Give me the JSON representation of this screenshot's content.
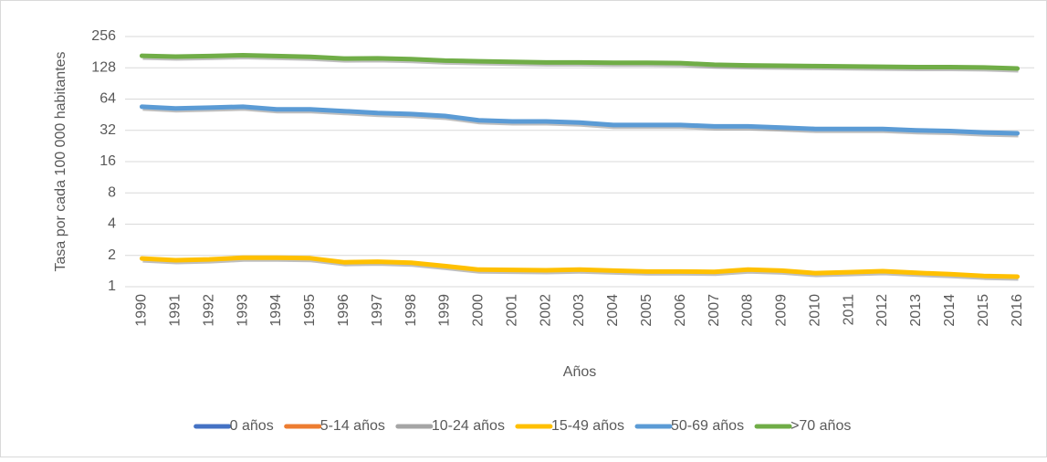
{
  "chart_data": {
    "type": "line",
    "y_label": "Tasa por cada 100 000 habitantes",
    "x_label": "Años",
    "categories": [
      "1990",
      "1991",
      "1992",
      "1993",
      "1994",
      "1995",
      "1996",
      "1997",
      "1998",
      "1999",
      "2000",
      "2001",
      "2002",
      "2003",
      "2004",
      "2005",
      "2006",
      "2007",
      "2008",
      "2009",
      "2010",
      "2011",
      "2012",
      "2013",
      "2014",
      "2015",
      "2016"
    ],
    "yscale": "log",
    "log_base": 2,
    "ylim": [
      1,
      256
    ],
    "yticks": [
      1,
      2,
      4,
      8,
      16,
      32,
      64,
      128,
      256
    ],
    "grid": true,
    "legend": "bottom",
    "series": [
      {
        "name": "0 años",
        "color": "#4472c4",
        "values": [
          null,
          null,
          null,
          null,
          null,
          null,
          null,
          null,
          null,
          null,
          null,
          null,
          null,
          null,
          null,
          null,
          null,
          null,
          null,
          null,
          null,
          null,
          null,
          null,
          null,
          null,
          null
        ]
      },
      {
        "name": "5-14 años",
        "color": "#ed7d31",
        "values": [
          null,
          null,
          null,
          null,
          null,
          null,
          null,
          null,
          null,
          null,
          null,
          null,
          null,
          null,
          null,
          null,
          null,
          null,
          null,
          null,
          null,
          null,
          null,
          null,
          null,
          null,
          null
        ]
      },
      {
        "name": "10-24 años",
        "color": "#a5a5a5",
        "values": [
          null,
          null,
          null,
          null,
          null,
          null,
          null,
          null,
          null,
          null,
          null,
          null,
          null,
          null,
          null,
          null,
          null,
          null,
          null,
          null,
          null,
          null,
          null,
          null,
          null,
          null,
          null
        ]
      },
      {
        "name": "15-49 años",
        "color": "#ffc000",
        "values": [
          1.87,
          1.8,
          1.83,
          1.9,
          1.9,
          1.88,
          1.72,
          1.74,
          1.7,
          1.58,
          1.46,
          1.45,
          1.44,
          1.46,
          1.43,
          1.4,
          1.4,
          1.39,
          1.46,
          1.43,
          1.35,
          1.38,
          1.41,
          1.36,
          1.32,
          1.27,
          1.25
        ]
      },
      {
        "name": "50-69 años",
        "color": "#5b9bd5",
        "values": [
          54,
          52,
          53,
          54,
          51,
          51,
          49,
          47,
          46,
          44,
          40,
          39,
          39,
          38,
          36,
          36,
          36,
          35,
          35,
          34,
          33,
          33,
          33,
          32,
          31.5,
          30.5,
          30
        ]
      },
      {
        "name": ">70 años",
        "color": "#70ad47",
        "values": [
          167,
          164,
          166,
          169,
          166,
          163,
          157,
          158,
          155,
          150,
          148,
          146,
          144,
          144,
          143,
          143,
          142,
          137,
          135,
          134,
          133,
          132,
          131,
          130,
          130,
          129,
          126
        ]
      }
    ]
  }
}
